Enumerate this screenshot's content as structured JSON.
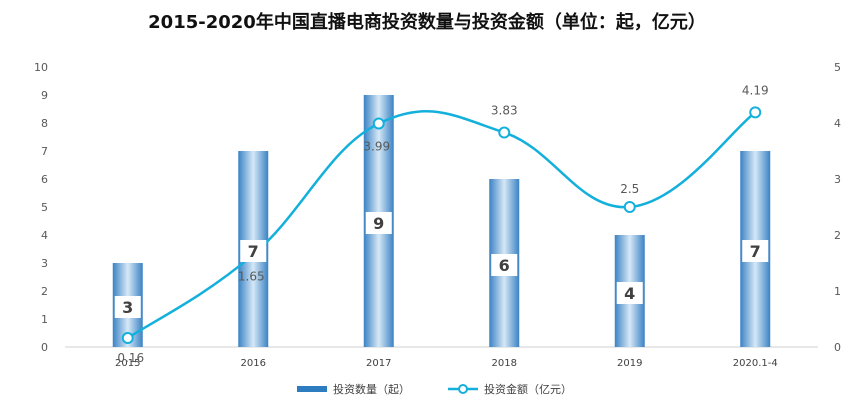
{
  "chart_data": {
    "type": "bar",
    "title": "2015-2020年中国直播电商投资数量与投资金额（单位：起，亿元）",
    "categories": [
      "2015",
      "2016",
      "2017",
      "2018",
      "2019",
      "2020.1-4"
    ],
    "series": [
      {
        "name": "投资数量（起）",
        "type": "bar",
        "axis": "left",
        "values": [
          3,
          7,
          9,
          6,
          4,
          7
        ],
        "color": "#2e7cc0"
      },
      {
        "name": "投资金额（亿元）",
        "type": "line",
        "axis": "right",
        "values": [
          0.16,
          1.65,
          3.99,
          3.83,
          2.5,
          4.19
        ],
        "color": "#14b0dc"
      }
    ],
    "y_left": {
      "range": [
        0,
        10
      ],
      "ticks": [
        0,
        1,
        2,
        3,
        4,
        5,
        6,
        7,
        8,
        9,
        10
      ]
    },
    "y_right": {
      "range": [
        0,
        5
      ],
      "ticks": [
        0,
        1,
        2,
        3,
        4,
        5
      ]
    },
    "grid": false,
    "legend_position": "bottom"
  }
}
